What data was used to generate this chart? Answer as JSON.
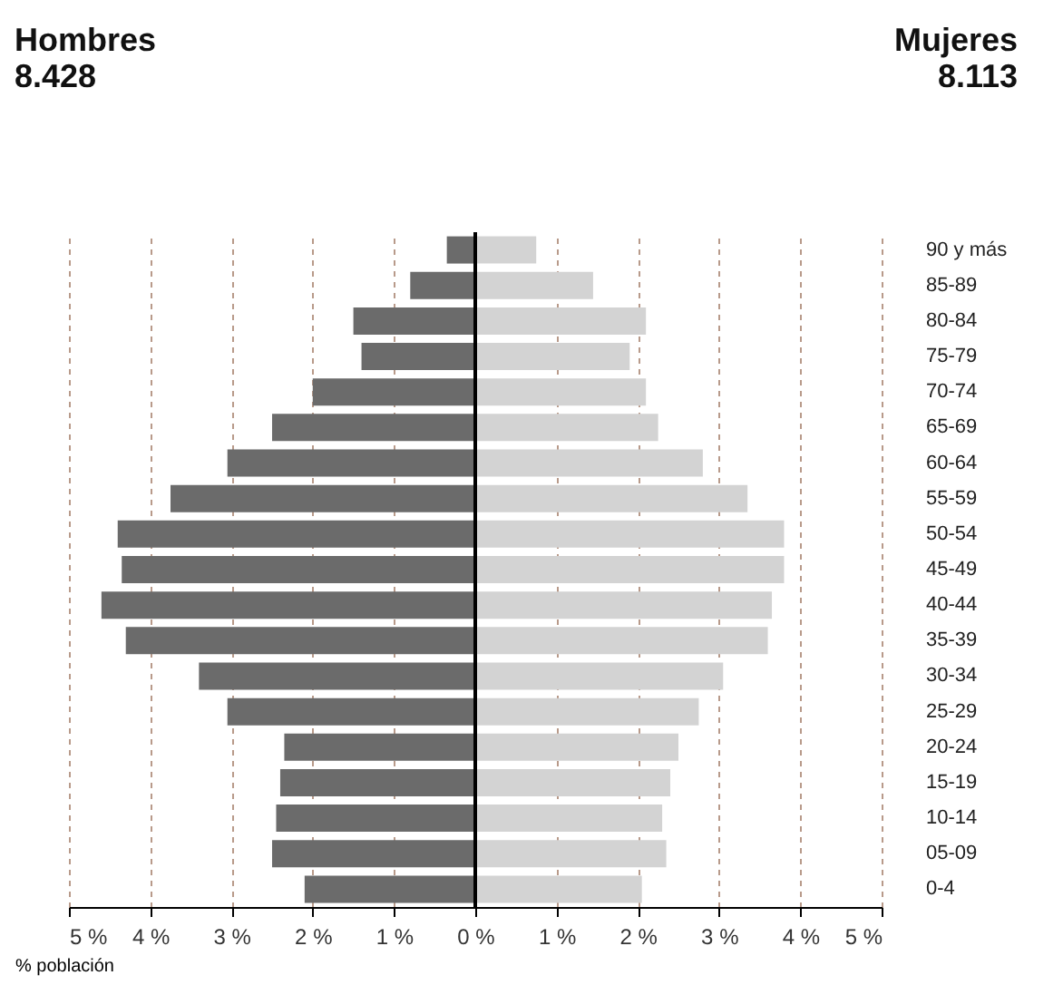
{
  "chart_data": {
    "type": "bar",
    "orientation": "horizontal",
    "categories": [
      "90 y más",
      "85-89",
      "80-84",
      "75-79",
      "70-74",
      "65-69",
      "60-64",
      "55-59",
      "50-54",
      "45-49",
      "40-44",
      "35-39",
      "30-34",
      "25-29",
      "20-24",
      "15-19",
      "10-14",
      "05-09",
      "0-4"
    ],
    "series": [
      {
        "color": "#6b6b6b",
        "values": [
          -0.35,
          -0.8,
          -1.5,
          -1.4,
          -2.0,
          -2.5,
          -3.05,
          -3.75,
          -4.4,
          -4.35,
          -4.6,
          -4.3,
          -3.4,
          -3.05,
          -2.35,
          -2.4,
          -2.45,
          -2.5,
          -2.1
        ]
      },
      {
        "color": "#d3d3d3",
        "values": [
          0.75,
          1.45,
          2.1,
          1.9,
          2.1,
          2.25,
          2.8,
          3.35,
          3.8,
          3.8,
          3.65,
          3.6,
          3.05,
          2.75,
          2.5,
          2.4,
          2.3,
          2.35,
          2.05
        ]
      }
    ],
    "annotations": [
      "Hombres",
      "8.428",
      "Mujeres",
      "8.113"
    ],
    "stacked": true,
    "xlabel": "% población",
    "xlim": [
      -5,
      5
    ],
    "xticks": [
      {
        "value": -5,
        "label": "5 %"
      },
      {
        "value": -4,
        "label": "4 %"
      },
      {
        "value": -3,
        "label": "3 %"
      },
      {
        "value": -2,
        "label": "2 %"
      },
      {
        "value": -1,
        "label": "1 %"
      },
      {
        "value": 0,
        "label": "0 %"
      },
      {
        "value": 1,
        "label": "1 %"
      },
      {
        "value": 2,
        "label": "2 %"
      },
      {
        "value": 3,
        "label": "3 %"
      },
      {
        "value": 4,
        "label": "4 %"
      },
      {
        "value": 5,
        "label": "5 %"
      }
    ],
    "ref_lines": [
      {
        "axis": "x",
        "value": 0,
        "color": "#000000"
      }
    ],
    "grid": "x",
    "legend": false
  }
}
